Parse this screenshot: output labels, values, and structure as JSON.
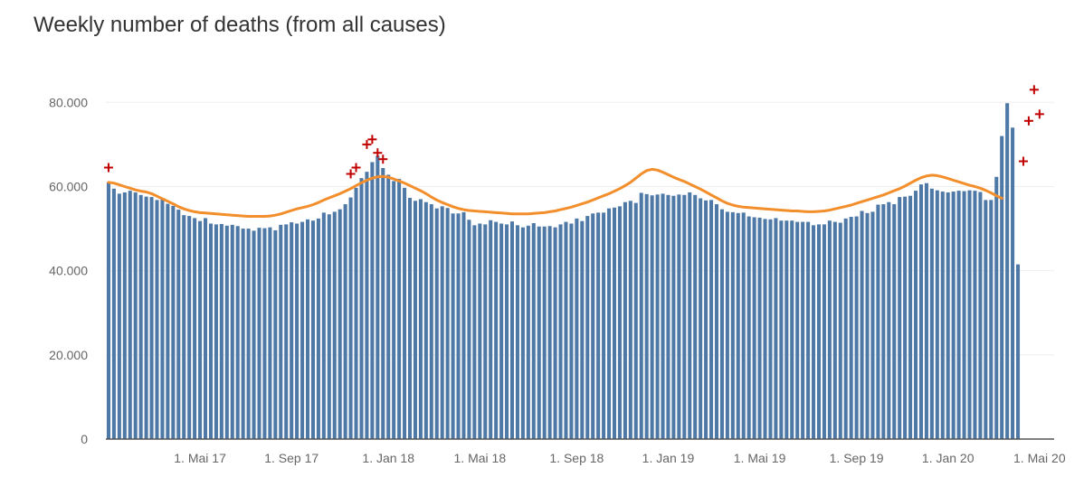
{
  "chart_data": {
    "type": "bar",
    "title": "Weekly number of deaths (from all causes)",
    "xlabel": "",
    "ylabel": "",
    "ylim": [
      0,
      85000
    ],
    "y_ticks": [
      {
        "value": 0,
        "label": "0"
      },
      {
        "value": 20000,
        "label": "20.000"
      },
      {
        "value": 40000,
        "label": "40.000"
      },
      {
        "value": 60000,
        "label": "60.000"
      },
      {
        "value": 80000,
        "label": "80.000"
      }
    ],
    "x_ticks": [
      "1. Mai 17",
      "1. Sep 17",
      "1. Jan 18",
      "1. Mai 18",
      "1. Sep 18",
      "1. Jan 19",
      "1. Mai 19",
      "1. Sep 19",
      "1. Jan 20",
      "1. Mai 20"
    ],
    "x_tick_week_index": [
      17,
      34,
      52,
      69,
      87,
      104,
      121,
      139,
      156,
      173
    ],
    "grid": true,
    "legend": "none",
    "colors": {
      "bars": "#4e79a7",
      "line": "#f28e2b",
      "marker": "#c00000",
      "grid": "#eeeeee",
      "axis": "#555555"
    },
    "series": [
      {
        "type": "bar",
        "values": [
          61000,
          59500,
          58300,
          58600,
          59000,
          58600,
          58000,
          57600,
          57500,
          56800,
          57000,
          55900,
          55400,
          54500,
          53200,
          53000,
          52500,
          51800,
          52500,
          51200,
          51000,
          51100,
          50700,
          50900,
          50600,
          50000,
          50000,
          49500,
          50200,
          50100,
          50300,
          49600,
          50900,
          51000,
          51500,
          51200,
          51600,
          52200,
          51900,
          52400,
          53800,
          53400,
          54000,
          54600,
          55800,
          57400,
          59700,
          62000,
          63500,
          65800,
          67300,
          64400,
          62800,
          61300,
          61800,
          59700,
          57300,
          56600,
          57000,
          56300,
          55800,
          54800,
          55300,
          54900,
          53600,
          53600,
          53900,
          52100,
          50800,
          51200,
          51000,
          52000,
          51600,
          51200,
          51000,
          51700,
          50800,
          50300,
          50700,
          51300,
          50500,
          50500,
          50600,
          50300,
          51000,
          51600,
          51200,
          52400,
          51800,
          53000,
          53600,
          53800,
          53800,
          54800,
          55000,
          55300,
          56300,
          56600,
          56100,
          58500,
          58200,
          57900,
          58100,
          58300,
          58000,
          57800,
          58100,
          58000,
          58600,
          58000,
          57200,
          56700,
          56800,
          55800,
          54600,
          54000,
          53900,
          53700,
          53800,
          52900,
          52700,
          52600,
          52300,
          52200,
          52500,
          51900,
          51900,
          51900,
          51600,
          51600,
          51600,
          50800,
          51000,
          51000,
          51900,
          51600,
          51400,
          52400,
          52800,
          52900,
          54200,
          53700,
          54000,
          55700,
          55800,
          56300,
          55800,
          57500,
          57600,
          57800,
          59000,
          60500,
          60800,
          59500,
          59100,
          58800,
          58600,
          58800,
          59000,
          58900,
          59100,
          59000,
          58700,
          56800,
          56800,
          62300,
          72000,
          79800,
          74000,
          41500
        ]
      },
      {
        "type": "line",
        "values": [
          61000,
          60800,
          60400,
          60000,
          59600,
          59200,
          58900,
          58700,
          58300,
          57700,
          57100,
          56500,
          55900,
          55200,
          54700,
          54300,
          54000,
          53800,
          53700,
          53600,
          53500,
          53400,
          53300,
          53200,
          53100,
          53000,
          52900,
          52900,
          52900,
          52900,
          53000,
          53200,
          53500,
          53900,
          54300,
          54700,
          55000,
          55300,
          55700,
          56200,
          56800,
          57300,
          57800,
          58300,
          58900,
          59500,
          60200,
          60900,
          61500,
          62000,
          62300,
          62400,
          62200,
          61800,
          61300,
          60800,
          60200,
          59600,
          59000,
          58300,
          57500,
          56800,
          56200,
          55700,
          55200,
          54800,
          54500,
          54300,
          54200,
          54100,
          54000,
          53900,
          53800,
          53700,
          53600,
          53500,
          53500,
          53500,
          53500,
          53600,
          53700,
          53800,
          54000,
          54200,
          54500,
          54800,
          55100,
          55500,
          55900,
          56300,
          56800,
          57300,
          57800,
          58300,
          58900,
          59500,
          60200,
          61000,
          62000,
          63000,
          63800,
          64100,
          63900,
          63400,
          62800,
          62200,
          61700,
          61200,
          60600,
          60000,
          59400,
          58700,
          58000,
          57300,
          56600,
          56000,
          55600,
          55300,
          55100,
          55000,
          54900,
          54800,
          54700,
          54600,
          54500,
          54400,
          54300,
          54200,
          54200,
          54100,
          54000,
          54000,
          54100,
          54200,
          54400,
          54700,
          55000,
          55300,
          55600,
          56000,
          56400,
          56800,
          57200,
          57600,
          58000,
          58500,
          59000,
          59500,
          60100,
          60800,
          61500,
          62100,
          62500,
          62700,
          62600,
          62300,
          61900,
          61500,
          61100,
          60700,
          60300,
          60000,
          59600,
          59100,
          58500,
          57800,
          57200
        ]
      }
    ],
    "markers": [
      {
        "week": 0,
        "value": 64500
      },
      {
        "week": 45,
        "value": 63000
      },
      {
        "week": 46,
        "value": 64500
      },
      {
        "week": 48,
        "value": 70000
      },
      {
        "week": 49,
        "value": 71200
      },
      {
        "week": 50,
        "value": 68000
      },
      {
        "week": 51,
        "value": 66500
      },
      {
        "week": 170,
        "value": 66000
      },
      {
        "week": 171,
        "value": 75600
      },
      {
        "week": 172,
        "value": 83000
      },
      {
        "week": 173,
        "value": 77200
      }
    ]
  }
}
